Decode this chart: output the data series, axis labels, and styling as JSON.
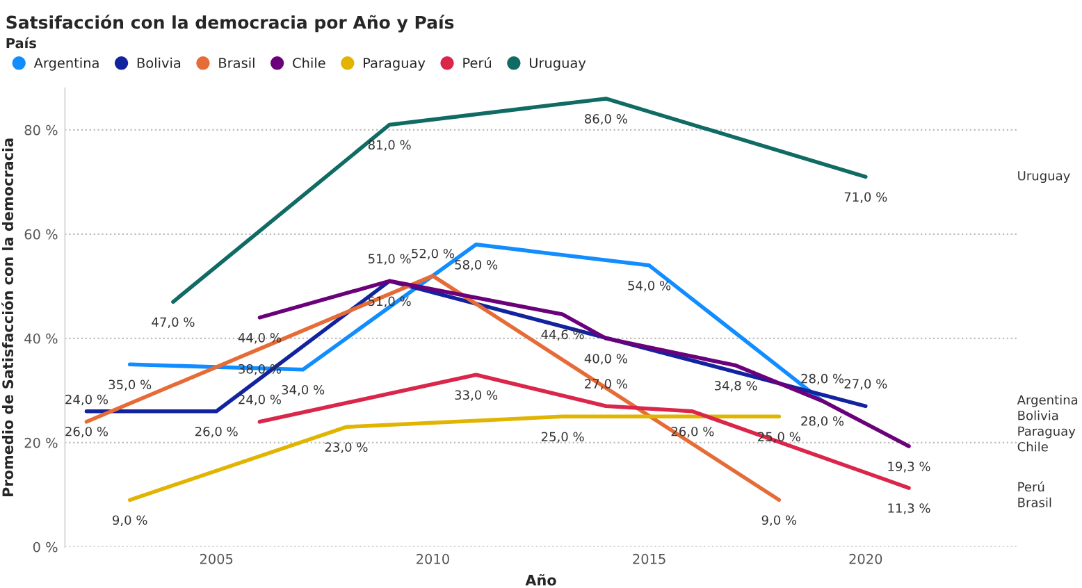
{
  "chart_data": {
    "type": "line",
    "title": "Satsifacción con la democracia por Año y País",
    "xlabel": "Año",
    "ylabel": "Promedio de Satisfacción con la democracia",
    "legend_title": "País",
    "legend": "top left",
    "grid": "y",
    "marker": "none",
    "line_style": "solid",
    "xlim": [
      2001.5,
      2023.5
    ],
    "xticks": [
      2005,
      2010,
      2015,
      2020
    ],
    "ylim": [
      0,
      88
    ],
    "yticks": [
      {
        "value": 0,
        "label": "0 %"
      },
      {
        "value": 20,
        "label": "20 %"
      },
      {
        "value": 40,
        "label": "40 %"
      },
      {
        "value": 60,
        "label": "60 %"
      },
      {
        "value": 80,
        "label": "80 %"
      }
    ],
    "series": [
      {
        "name": "Argentina",
        "color": "#118dff",
        "x": [
          2003,
          2007,
          2011,
          2015,
          2019
        ],
        "values": [
          35,
          34,
          58,
          54,
          28
        ],
        "value_labels": [
          "35,0 %",
          "34,0 %",
          "58,0 %",
          "54,0 %",
          "28,0 %"
        ]
      },
      {
        "name": "Bolivia",
        "color": "#12239e",
        "x": [
          2002,
          2005,
          2009,
          2020
        ],
        "values": [
          26,
          26,
          51,
          27
        ],
        "value_labels": [
          "26,0 %",
          "26,0 %",
          "51,0 %",
          "27,0 %"
        ]
      },
      {
        "name": "Brasil",
        "color": "#e66c37",
        "x": [
          2002,
          2006,
          2010,
          2018
        ],
        "values": [
          24,
          38,
          52,
          9
        ],
        "value_labels": [
          "24,0 %",
          "38,0 %",
          "52,0 %",
          "9,0 %"
        ]
      },
      {
        "name": "Chile",
        "color": "#6b007b",
        "x": [
          2006,
          2009,
          2013,
          2014,
          2017,
          2019,
          2021
        ],
        "values": [
          44,
          51,
          44.6,
          40,
          34.8,
          28,
          19.3
        ],
        "value_labels": [
          "44,0 %",
          "51,0 %",
          "44,6 %",
          "40,0 %",
          "34,8 %",
          "28,0 %",
          "19,3 %"
        ]
      },
      {
        "name": "Paraguay",
        "color": "#e0b400",
        "x": [
          2003,
          2008,
          2013,
          2018
        ],
        "values": [
          9,
          23,
          25,
          25
        ],
        "value_labels": [
          "9,0 %",
          "23,0 %",
          "25,0 %",
          "25,0 %"
        ]
      },
      {
        "name": "Perú",
        "color": "#d9264a",
        "x": [
          2006,
          2011,
          2014,
          2016,
          2021
        ],
        "values": [
          24,
          33,
          27,
          26,
          11.3
        ],
        "value_labels": [
          "24,0 %",
          "33,0 %",
          "27,0 %",
          "26,0 %",
          "11,3 %"
        ]
      },
      {
        "name": "Uruguay",
        "color": "#0f6b63",
        "x": [
          2004,
          2009,
          2014,
          2020
        ],
        "values": [
          47,
          81,
          86,
          71
        ],
        "value_labels": [
          "47,0 %",
          "81,0 %",
          "86,0 %",
          "71,0 %"
        ]
      }
    ]
  }
}
